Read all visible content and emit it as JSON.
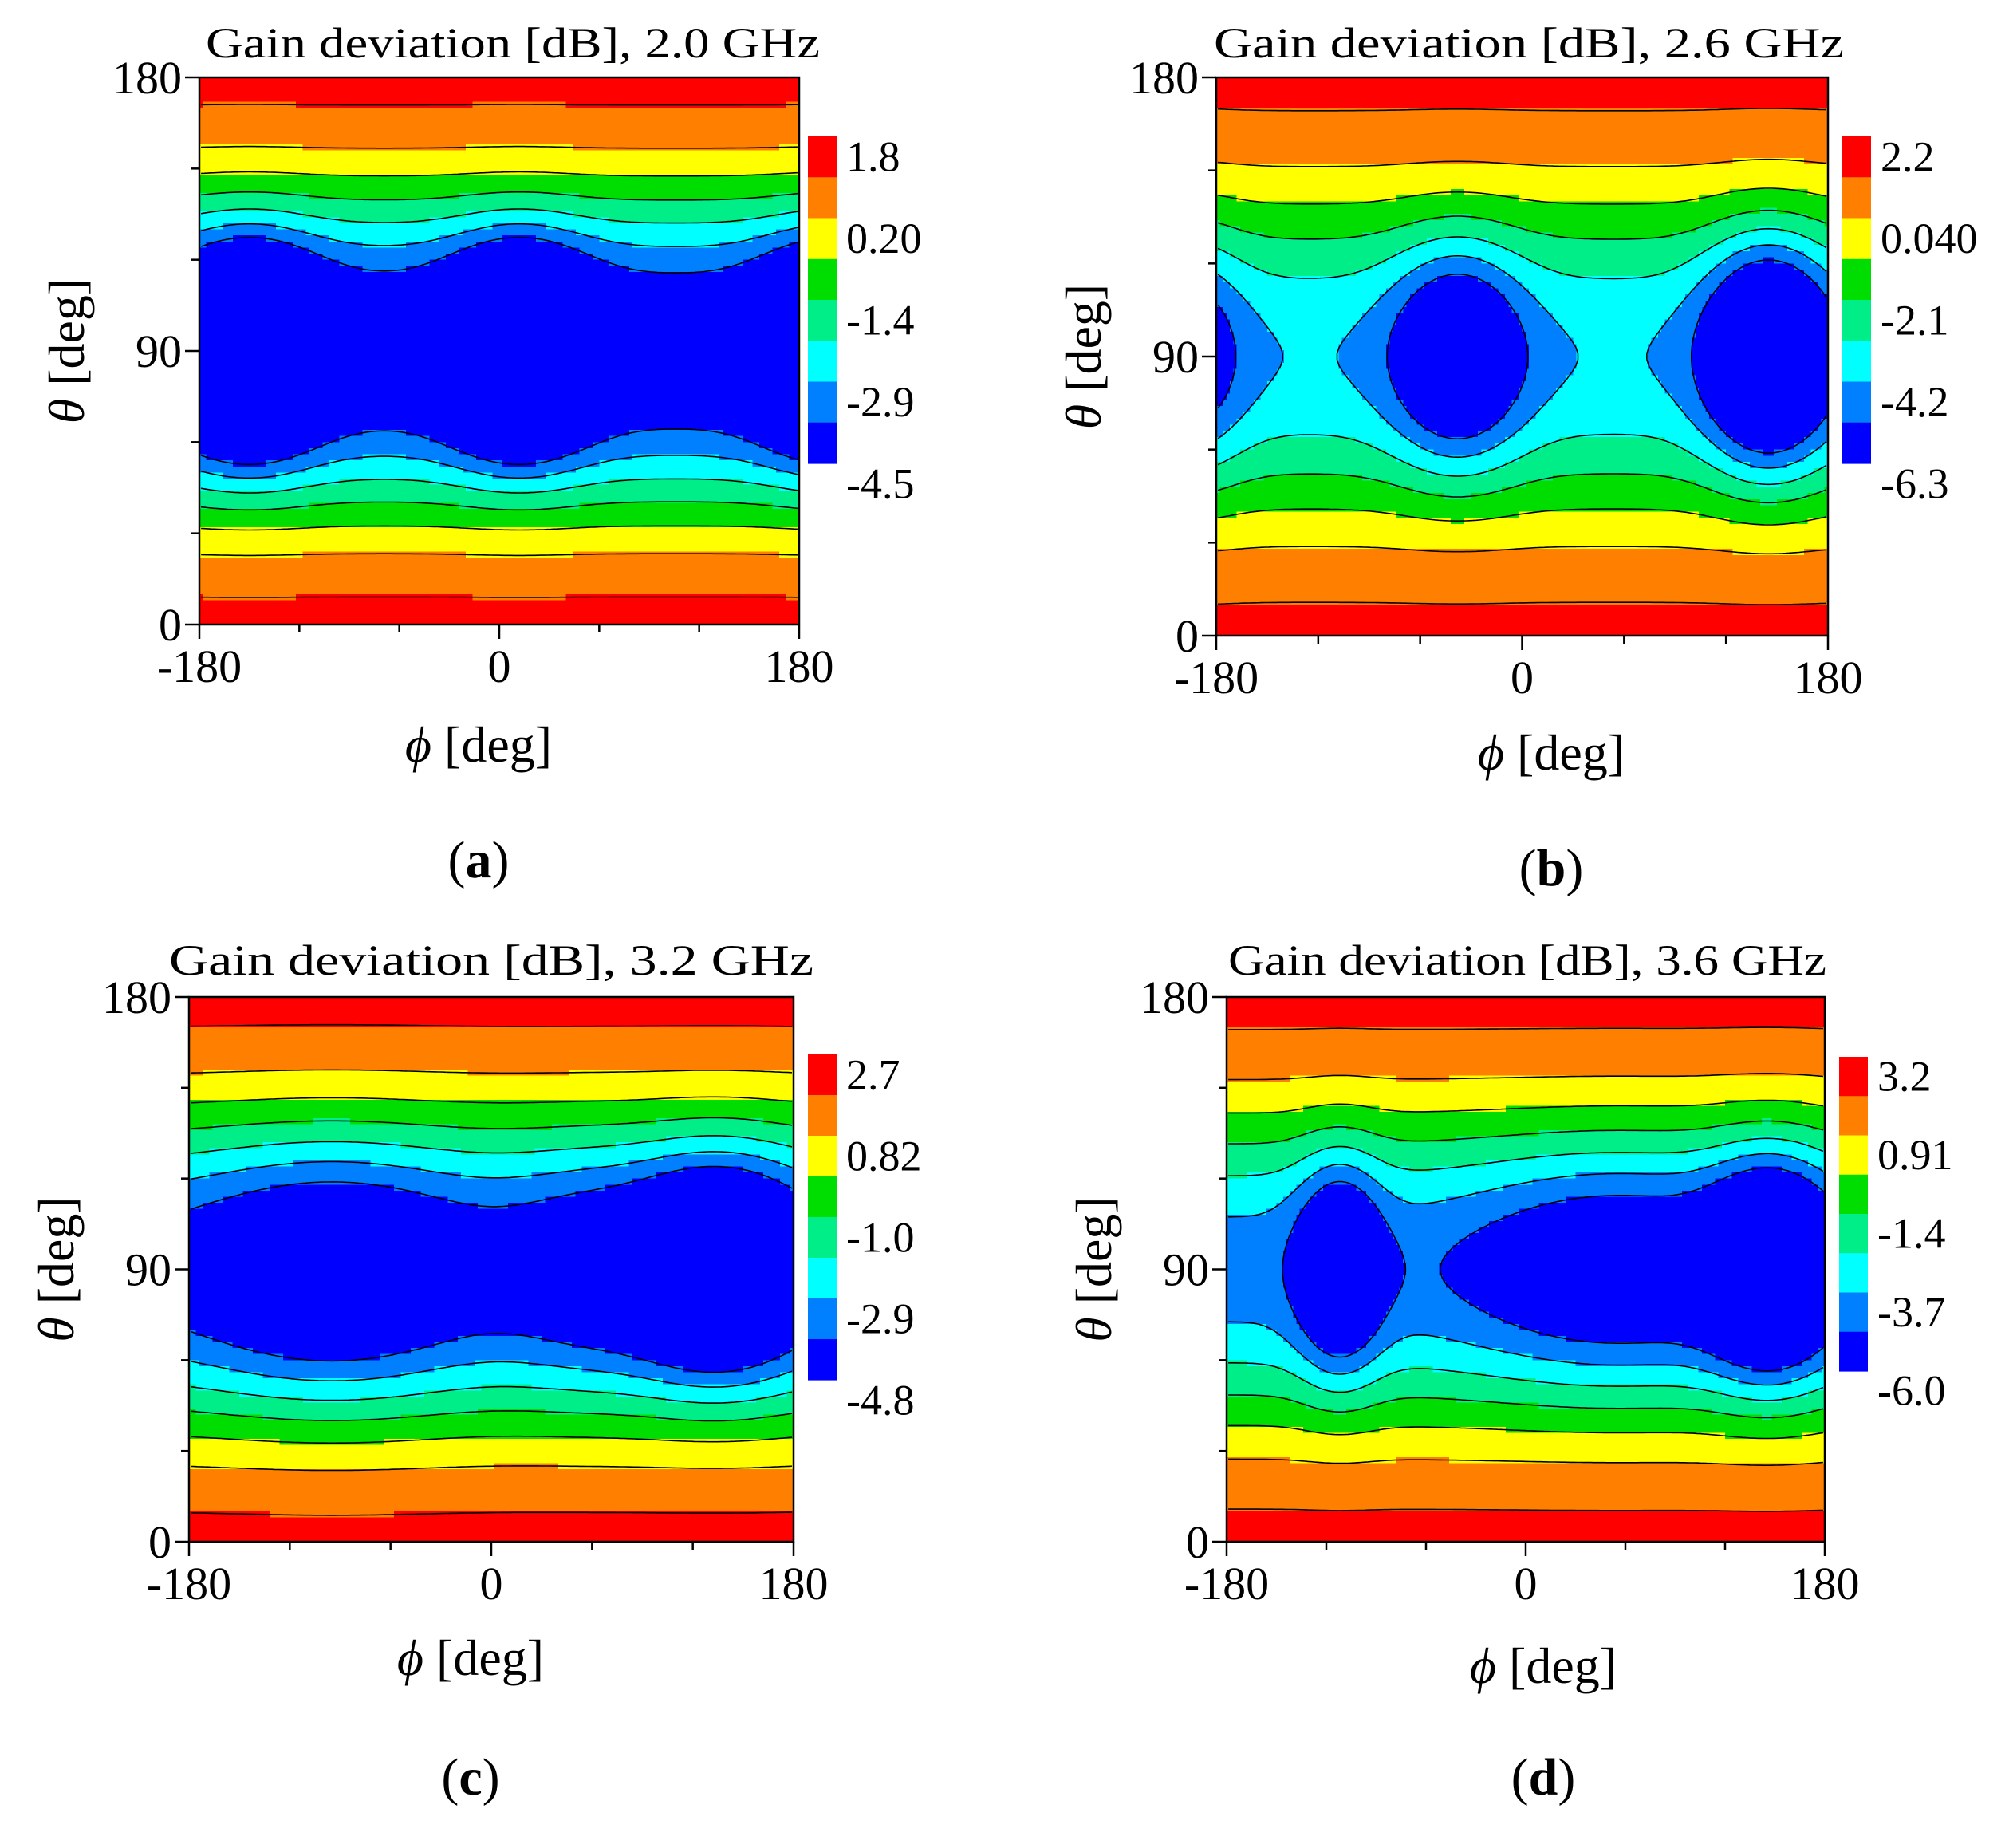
{
  "chart_data": [
    {
      "type": "contour",
      "panel_label": "(a)",
      "panel_letter": "a",
      "title": "Gain deviation [dB], 2.0 GHz",
      "xlabel_symbol": "ϕ",
      "ylabel_symbol": "θ",
      "xlabel_unit": " [deg]",
      "ylabel_unit": " [deg]",
      "xlim": [
        -180,
        180
      ],
      "ylim": [
        0,
        180
      ],
      "xticks": [
        -180,
        0,
        180
      ],
      "yticks": [
        0,
        90,
        180
      ],
      "colorbar_labels": [
        "1.8",
        "0.20",
        "-1.4",
        "-2.9",
        "-4.5"
      ],
      "colorbar_colors": [
        "#ff0000",
        "#ff8000",
        "#ffff00",
        "#00dd00",
        "#00ee88",
        "#00ffff",
        "#0080ff",
        "#0000ff"
      ],
      "levels": [
        -5.3,
        -4.5,
        -3.7,
        -2.9,
        -2.1,
        -1.4,
        -0.6,
        0.2,
        1.0,
        1.8,
        2.6
      ],
      "model": {
        "base": 1.8,
        "sin_amp": 7.5,
        "phi_mod": 0,
        "dips": [
          {
            "phi": -150,
            "theta": 90,
            "amp": 5.8,
            "sphi": 28,
            "sth": 22
          },
          {
            "phi": 12,
            "theta": 90,
            "amp": 5.8,
            "sphi": 28,
            "sth": 22
          },
          {
            "phi": 200,
            "theta": 90,
            "amp": 5.8,
            "sphi": 28,
            "sth": 22
          }
        ]
      }
    },
    {
      "type": "contour",
      "panel_label": "(b)",
      "panel_letter": "b",
      "title": "Gain deviation [dB], 2.6 GHz",
      "xlabel_symbol": "ϕ",
      "ylabel_symbol": "θ",
      "xlabel_unit": " [deg]",
      "ylabel_unit": " [deg]",
      "xlim": [
        -180,
        180
      ],
      "ylim": [
        0,
        180
      ],
      "xticks": [
        -180,
        0,
        180
      ],
      "yticks": [
        0,
        90,
        180
      ],
      "colorbar_labels": [
        "2.2",
        "0.040",
        "-2.1",
        "-4.2",
        "-6.3"
      ],
      "colorbar_colors": [
        "#ff0000",
        "#ff8000",
        "#ffff00",
        "#00dd00",
        "#00ee88",
        "#00ffff",
        "#0080ff",
        "#0000ff"
      ],
      "levels": [
        -7.4,
        -6.3,
        -5.25,
        -4.2,
        -3.15,
        -2.1,
        -1.03,
        0.04,
        1.12,
        2.2,
        3.3
      ],
      "model": {
        "base": 2.2,
        "sin_amp": 6.8,
        "phi_mod": 0.5,
        "dips": [
          {
            "phi": -38,
            "theta": 90,
            "amp": 5.2,
            "sphi": 26,
            "sth": 24
          },
          {
            "phi": 145,
            "theta": 90,
            "amp": 7.6,
            "sphi": 25,
            "sth": 24
          },
          {
            "phi": -198,
            "theta": 90,
            "amp": 3.6,
            "sphi": 22,
            "sth": 26
          }
        ]
      }
    },
    {
      "type": "contour",
      "panel_label": "(c)",
      "panel_letter": "c",
      "title": "Gain deviation [dB], 3.2 GHz",
      "xlabel_symbol": "ϕ",
      "ylabel_symbol": "θ",
      "xlabel_unit": " [deg]",
      "ylabel_unit": " [deg]",
      "xlim": [
        -180,
        180
      ],
      "ylim": [
        0,
        180
      ],
      "xticks": [
        -180,
        0,
        180
      ],
      "yticks": [
        0,
        90,
        180
      ],
      "colorbar_labels": [
        "2.7",
        "0.82",
        "-1.0",
        "-2.9",
        "-4.8"
      ],
      "colorbar_colors": [
        "#ff0000",
        "#ff8000",
        "#ffff00",
        "#00dd00",
        "#00ee88",
        "#00ffff",
        "#0080ff",
        "#0000ff"
      ],
      "levels": [
        -5.75,
        -4.8,
        -3.85,
        -2.9,
        -1.95,
        -1.0,
        -0.09,
        0.82,
        1.76,
        2.7,
        3.65
      ],
      "model": {
        "base": 2.7,
        "sin_amp": 7.5,
        "phi_mod": 0.3,
        "dips": [
          {
            "phi": -95,
            "theta": 88,
            "amp": 2.8,
            "sphi": 55,
            "sth": 28
          },
          {
            "phi": 135,
            "theta": 90,
            "amp": 5.6,
            "sphi": 34,
            "sth": 24
          },
          {
            "phi": 60,
            "theta": 90,
            "amp": 1.6,
            "sphi": 35,
            "sth": 25
          }
        ]
      }
    },
    {
      "type": "contour",
      "panel_label": "(d)",
      "panel_letter": "d",
      "title": "Gain deviation [dB], 3.6 GHz",
      "xlabel_symbol": "ϕ",
      "ylabel_symbol": "θ",
      "xlabel_unit": " [deg]",
      "ylabel_unit": " [deg]",
      "xlim": [
        -180,
        180
      ],
      "ylim": [
        0,
        180
      ],
      "xticks": [
        -180,
        0,
        180
      ],
      "yticks": [
        0,
        90,
        180
      ],
      "colorbar_labels": [
        "3.2",
        "0.91",
        "-1.4",
        "-3.7",
        "-6.0"
      ],
      "colorbar_colors": [
        "#ff0000",
        "#ff8000",
        "#ffff00",
        "#00dd00",
        "#00ee88",
        "#00ffff",
        "#0080ff",
        "#0000ff"
      ],
      "levels": [
        -7.15,
        -6.0,
        -4.85,
        -3.7,
        -2.55,
        -1.4,
        -0.25,
        0.91,
        2.05,
        3.2,
        4.35
      ],
      "model": {
        "base": 3.2,
        "sin_amp": 8.2,
        "phi_mod": 0.4,
        "dips": [
          {
            "phi": -112,
            "theta": 90,
            "amp": 5.4,
            "sphi": 17,
            "sth": 24
          },
          {
            "phi": 148,
            "theta": 90,
            "amp": 7.4,
            "sphi": 26,
            "sth": 24
          },
          {
            "phi": 55,
            "theta": 90,
            "amp": 3.4,
            "sphi": 60,
            "sth": 25
          }
        ]
      }
    }
  ]
}
